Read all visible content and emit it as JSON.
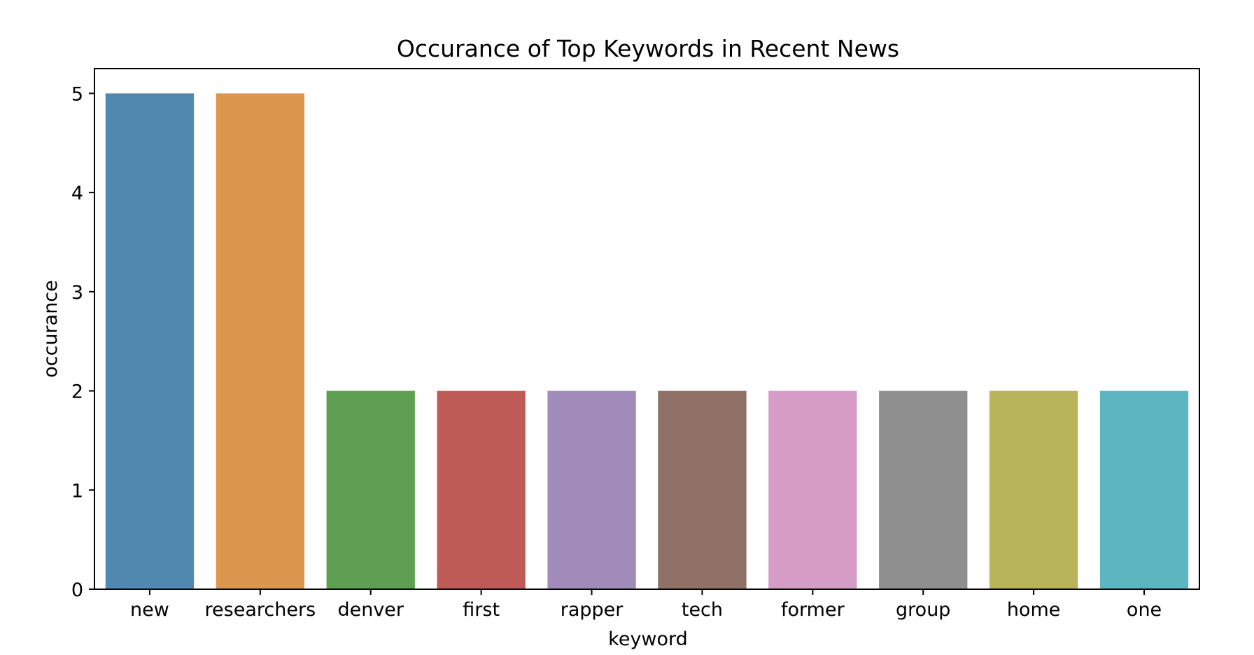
{
  "chart_data": {
    "type": "bar",
    "title": "Occurance of Top Keywords in Recent News",
    "xlabel": "keyword",
    "ylabel": "occurance",
    "categories": [
      "new",
      "researchers",
      "denver",
      "first",
      "rapper",
      "tech",
      "former",
      "group",
      "home",
      "one"
    ],
    "values": [
      5,
      5,
      2,
      2,
      2,
      2,
      2,
      2,
      2,
      2
    ],
    "colors": [
      "#5088b0",
      "#dc964e",
      "#5f9f54",
      "#bf5b56",
      "#a08bbb",
      "#907168",
      "#d59dc5",
      "#8f8f8f",
      "#b7b45b",
      "#5eb5c2"
    ],
    "ylim": [
      0,
      5.25
    ],
    "yticks": [
      0,
      1,
      2,
      3,
      4,
      5
    ],
    "grid": false,
    "legend": "none"
  }
}
